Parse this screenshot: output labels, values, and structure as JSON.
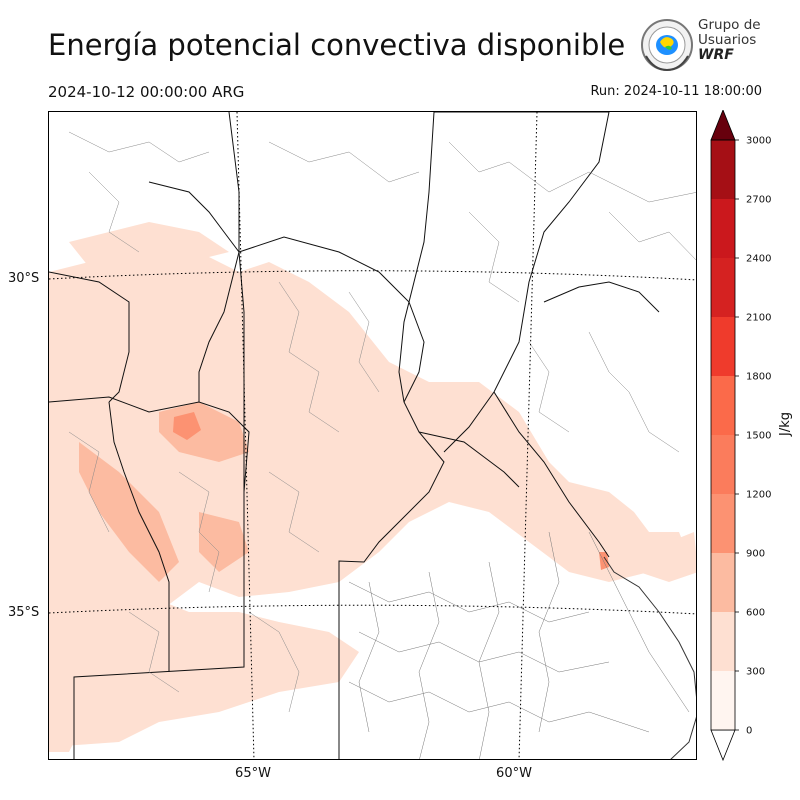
{
  "header": {
    "title": "Energía potencial convectiva disponible",
    "valid_time": "2024-10-12 00:00:00 ARG",
    "run_time": "Run: 2024-10-11 18:00:00"
  },
  "logo": {
    "line1": "Grupo de",
    "line2": "Usuarios",
    "line3": "WRF"
  },
  "map": {
    "lat_labels": [
      "30°S",
      "35°S"
    ],
    "lon_labels": [
      "65°W",
      "60°W"
    ]
  },
  "colorbar": {
    "unit": "J/kg",
    "ticks": [
      "0",
      "300",
      "600",
      "900",
      "1200",
      "1500",
      "1800",
      "2100",
      "2400",
      "2700",
      "3000"
    ],
    "colors": [
      "#fff5f0",
      "#fee0d2",
      "#fcbba1",
      "#fc9272",
      "#fb7c5c",
      "#fb6a4a",
      "#ef3b2c",
      "#d52221",
      "#cb181d",
      "#a50f15",
      "#67000d"
    ]
  }
}
